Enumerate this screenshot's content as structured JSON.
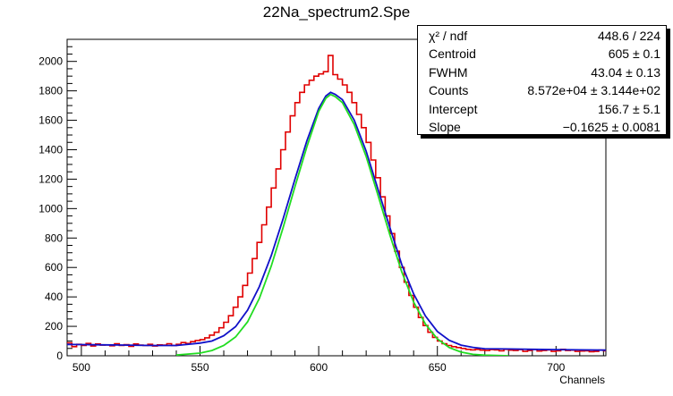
{
  "title": "22Na_spectrum2.Spe",
  "stats": [
    {
      "label": "χ² / ndf",
      "value": "448.6 / 224"
    },
    {
      "label": "Centroid",
      "value": "605 ± 0.1"
    },
    {
      "label": "FWHM",
      "value": "43.04 ± 0.13"
    },
    {
      "label": "Counts",
      "value": "8.572e+04 ± 3.144e+02"
    },
    {
      "label": "Intercept",
      "value": "156.7 ± 5.1"
    },
    {
      "label": "Slope",
      "value": "−0.1625 ± 0.0081"
    }
  ],
  "chart_data": {
    "type": "line",
    "title": "22Na_spectrum2.Spe",
    "xlabel": "Channels",
    "ylabel": "",
    "xlim": [
      494,
      721
    ],
    "ylim": [
      0,
      2150
    ],
    "xticks": [
      500,
      550,
      600,
      650,
      700
    ],
    "yticks": [
      0,
      200,
      400,
      600,
      800,
      1000,
      1200,
      1400,
      1600,
      1800,
      2000
    ],
    "grid": false,
    "colors": {
      "histogram": "#e00000",
      "total_fit": "#1010c8",
      "gaussian": "#22dd22"
    },
    "fit": {
      "centroid": 605,
      "fwhm": 43.04,
      "counts": 85720,
      "intercept": 156.7,
      "slope": -0.1625
    },
    "series": [
      {
        "role": "histogram",
        "x": [
          494,
          496,
          498,
          500,
          502,
          504,
          506,
          508,
          510,
          512,
          514,
          516,
          518,
          520,
          522,
          524,
          526,
          528,
          530,
          532,
          534,
          536,
          538,
          540,
          542,
          544,
          546,
          548,
          550,
          552,
          554,
          556,
          558,
          560,
          562,
          564,
          566,
          568,
          570,
          572,
          574,
          576,
          578,
          580,
          582,
          584,
          586,
          588,
          590,
          592,
          594,
          596,
          598,
          600,
          602,
          604,
          606,
          608,
          610,
          612,
          614,
          616,
          618,
          620,
          622,
          624,
          626,
          628,
          630,
          632,
          634,
          636,
          638,
          640,
          642,
          644,
          646,
          648,
          650,
          652,
          654,
          656,
          658,
          660,
          662,
          664,
          666,
          668,
          670,
          672,
          674,
          676,
          678,
          680,
          682,
          684,
          686,
          688,
          690,
          692,
          694,
          696,
          698,
          700,
          702,
          704,
          706,
          708,
          710,
          712,
          714,
          716,
          718,
          720
        ],
        "values": [
          88,
          62,
          78,
          70,
          84,
          66,
          80,
          72,
          74,
          68,
          82,
          70,
          76,
          64,
          80,
          72,
          70,
          78,
          66,
          74,
          72,
          82,
          70,
          78,
          90,
          84,
          96,
          104,
          110,
          122,
          140,
          160,
          190,
          228,
          272,
          330,
          400,
          478,
          562,
          660,
          770,
          890,
          1010,
          1140,
          1270,
          1400,
          1520,
          1630,
          1720,
          1790,
          1840,
          1872,
          1900,
          1915,
          1930,
          2040,
          1910,
          1880,
          1840,
          1790,
          1720,
          1640,
          1550,
          1450,
          1330,
          1210,
          1080,
          950,
          830,
          710,
          600,
          500,
          410,
          330,
          260,
          205,
          160,
          125,
          100,
          82,
          70,
          62,
          56,
          50,
          44,
          40,
          44,
          38,
          36,
          42,
          40,
          34,
          44,
          38,
          36,
          42,
          30,
          36,
          44,
          32,
          36,
          40,
          30,
          34,
          44,
          36,
          38,
          30,
          32,
          34,
          28,
          30,
          38,
          34
        ]
      },
      {
        "role": "total_fit",
        "x": [
          494,
          500,
          510,
          520,
          530,
          540,
          550,
          555,
          560,
          565,
          570,
          575,
          580,
          585,
          590,
          595,
          600,
          603,
          605,
          607,
          610,
          615,
          620,
          625,
          630,
          635,
          640,
          645,
          650,
          655,
          660,
          665,
          670,
          680,
          690,
          700,
          710,
          721
        ],
        "values": [
          77,
          76,
          74,
          72,
          70,
          70,
          86,
          100,
          136,
          198,
          310,
          470,
          680,
          930,
          1200,
          1460,
          1680,
          1765,
          1790,
          1775,
          1740,
          1600,
          1390,
          1130,
          870,
          620,
          420,
          270,
          165,
          105,
          72,
          57,
          48,
          46,
          44,
          42,
          40,
          38
        ]
      },
      {
        "role": "gaussian",
        "x": [
          540,
          550,
          555,
          560,
          565,
          570,
          575,
          580,
          585,
          590,
          595,
          600,
          603,
          605,
          607,
          610,
          615,
          620,
          625,
          630,
          635,
          640,
          645,
          650,
          655,
          660,
          665,
          670,
          680
        ],
        "values": [
          5,
          18,
          36,
          70,
          128,
          230,
          390,
          610,
          870,
          1150,
          1420,
          1660,
          1750,
          1775,
          1760,
          1720,
          1570,
          1355,
          1090,
          820,
          570,
          365,
          215,
          115,
          56,
          25,
          10,
          4,
          0
        ]
      }
    ]
  }
}
